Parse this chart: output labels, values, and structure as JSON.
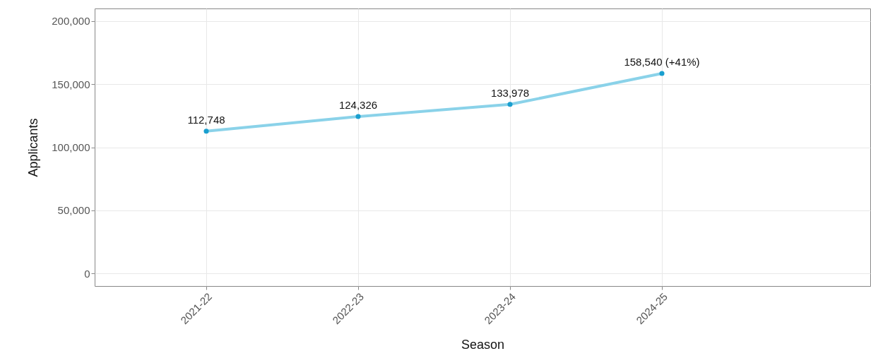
{
  "chart_data": {
    "type": "line",
    "xlabel": "Season",
    "ylabel": "Applicants",
    "categories": [
      "2021-22",
      "2022-23",
      "2023-24",
      "2024-25"
    ],
    "series": [
      {
        "color": "#8ad2e9",
        "values": [
          112748,
          124326,
          133978,
          158540
        ],
        "value_labels": [
          "112,748",
          "124,326",
          "133,978",
          "158,540 (+41%)"
        ]
      }
    ],
    "ylim": [
      -10000,
      210000
    ],
    "yticks": [
      {
        "value": 0,
        "label": "0"
      },
      {
        "value": 50000,
        "label": "50,000"
      },
      {
        "value": 100000,
        "label": "100,000"
      },
      {
        "value": 150000,
        "label": "150,000"
      },
      {
        "value": 200000,
        "label": "200,000"
      }
    ],
    "grid": true,
    "marker": "circle",
    "line_style": "solid"
  }
}
